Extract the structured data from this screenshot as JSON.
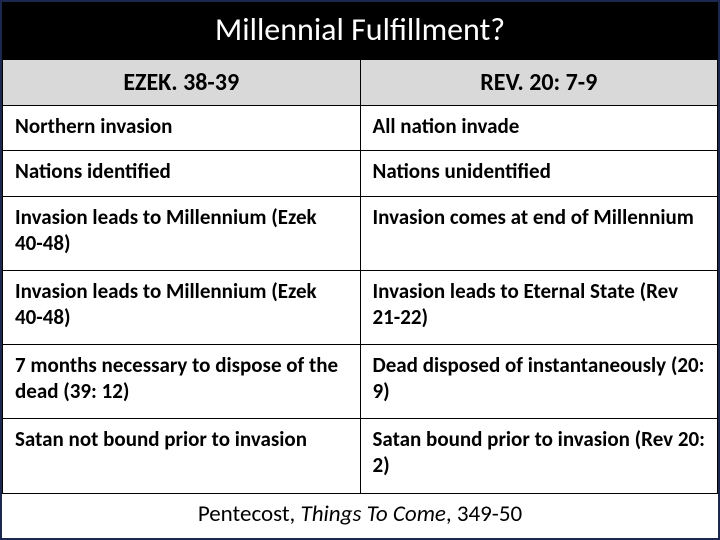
{
  "title": "Millennial Fulfillment?",
  "header": {
    "left": "EZEK. 38-39",
    "right": "REV. 20: 7-9"
  },
  "rows": [
    {
      "left": "Northern invasion",
      "right": "All nation invade"
    },
    {
      "left": "Nations identified",
      "right": "Nations unidentified"
    },
    {
      "left": "Invasion leads to Millennium (Ezek 40-48)",
      "right": "Invasion comes at end of Millennium"
    },
    {
      "left": "Invasion leads to Millennium (Ezek 40-48)",
      "right": "Invasion leads to Eternal State (Rev 21-22)"
    },
    {
      "left": "7 months necessary to dispose of the dead (39: 12)",
      "right": "Dead disposed of instantaneously (20: 9)"
    },
    {
      "left": "Satan not bound prior to invasion",
      "right": "Satan bound prior to invasion (Rev 20: 2)"
    }
  ],
  "citation": {
    "author": "Pentecost, ",
    "work": "Things To Come",
    "pages": ", 349-50"
  },
  "colors": {
    "title_bg": "#000000",
    "title_fg": "#ffffff",
    "header_bg": "#d9d9d9",
    "border": "#000000",
    "outer_border": "#1a2850",
    "text": "#000000"
  },
  "typography": {
    "title_fontsize": 32,
    "header_fontsize": 24,
    "cell_fontsize": 21,
    "citation_fontsize": 23,
    "font_family": "Calibri"
  },
  "table": {
    "type": "table",
    "columns": 2,
    "col_widths": [
      "50%",
      "50%"
    ]
  }
}
